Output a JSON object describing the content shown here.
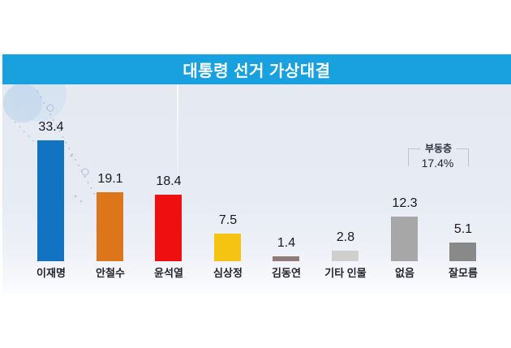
{
  "title": "대통령 선거 가상대결",
  "chart_data": {
    "type": "bar",
    "title": "대통령 선거 가상대결",
    "categories": [
      "이재명",
      "안철수",
      "윤석열",
      "심상정",
      "김동연",
      "기타 인물",
      "없음",
      "잘모름"
    ],
    "values": [
      33.4,
      19.1,
      18.4,
      7.5,
      1.4,
      2.8,
      12.3,
      5.1
    ],
    "value_labels": [
      "33.4",
      "19.1",
      "18.4",
      "7.5",
      "1.4",
      "2.8",
      "12.3",
      "5.1"
    ],
    "bar_colors": [
      "#1273c3",
      "#dd751a",
      "#ef0f10",
      "#f5c413",
      "#8e7b7a",
      "#cfcfcd",
      "#a7a7a7",
      "#898989"
    ],
    "xlabel": "",
    "ylabel": "",
    "ylim": [
      0,
      36
    ],
    "grid": false,
    "legend": null,
    "annotation": {
      "label": "부동층",
      "value": "17.4%",
      "over_categories": [
        "없음",
        "잘모름"
      ]
    }
  },
  "colors": {
    "title_band": "#18a0df",
    "title_text": "#ffffff",
    "panel_top": "#e4e9f2",
    "panel_bottom": "#fbfcfe",
    "bracket": "#bcc3cf",
    "value_text": "#17191d",
    "category_text": "#20242c"
  }
}
